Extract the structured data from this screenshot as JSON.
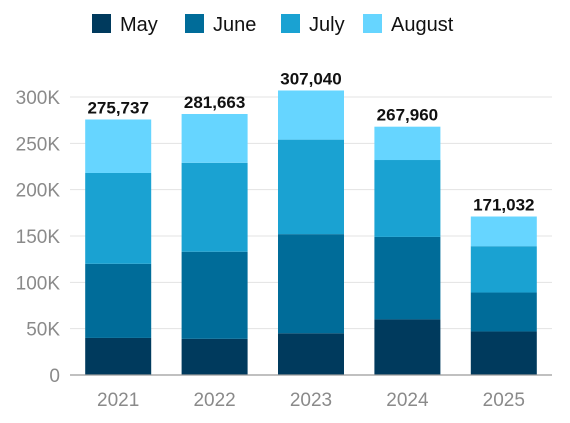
{
  "chart_data": {
    "type": "bar",
    "stacked": true,
    "categories": [
      "2021",
      "2022",
      "2023",
      "2024",
      "2025"
    ],
    "series": [
      {
        "name": "May",
        "color": "#003a5d",
        "values": [
          40000,
          39000,
          45000,
          60000,
          47000
        ]
      },
      {
        "name": "June",
        "color": "#006c99",
        "values": [
          80000,
          94000,
          107000,
          89000,
          42000
        ]
      },
      {
        "name": "July",
        "color": "#1aa2d2",
        "values": [
          98000,
          96000,
          102000,
          83000,
          50000
        ]
      },
      {
        "name": "August",
        "color": "#66d5ff",
        "values": [
          57737,
          52663,
          53040,
          35960,
          32032
        ]
      }
    ],
    "totals": [
      "275,737",
      "281,663",
      "307,040",
      "267,960",
      "171,032"
    ],
    "ylim": [
      0,
      300000
    ],
    "yticks": [
      0,
      50000,
      100000,
      150000,
      200000,
      250000,
      300000
    ],
    "ytick_labels": [
      "0",
      "50K",
      "100K",
      "150K",
      "200K",
      "250K",
      "300K"
    ],
    "grid": true,
    "legend": "top-left",
    "title": "",
    "xlabel": "",
    "ylabel": ""
  }
}
